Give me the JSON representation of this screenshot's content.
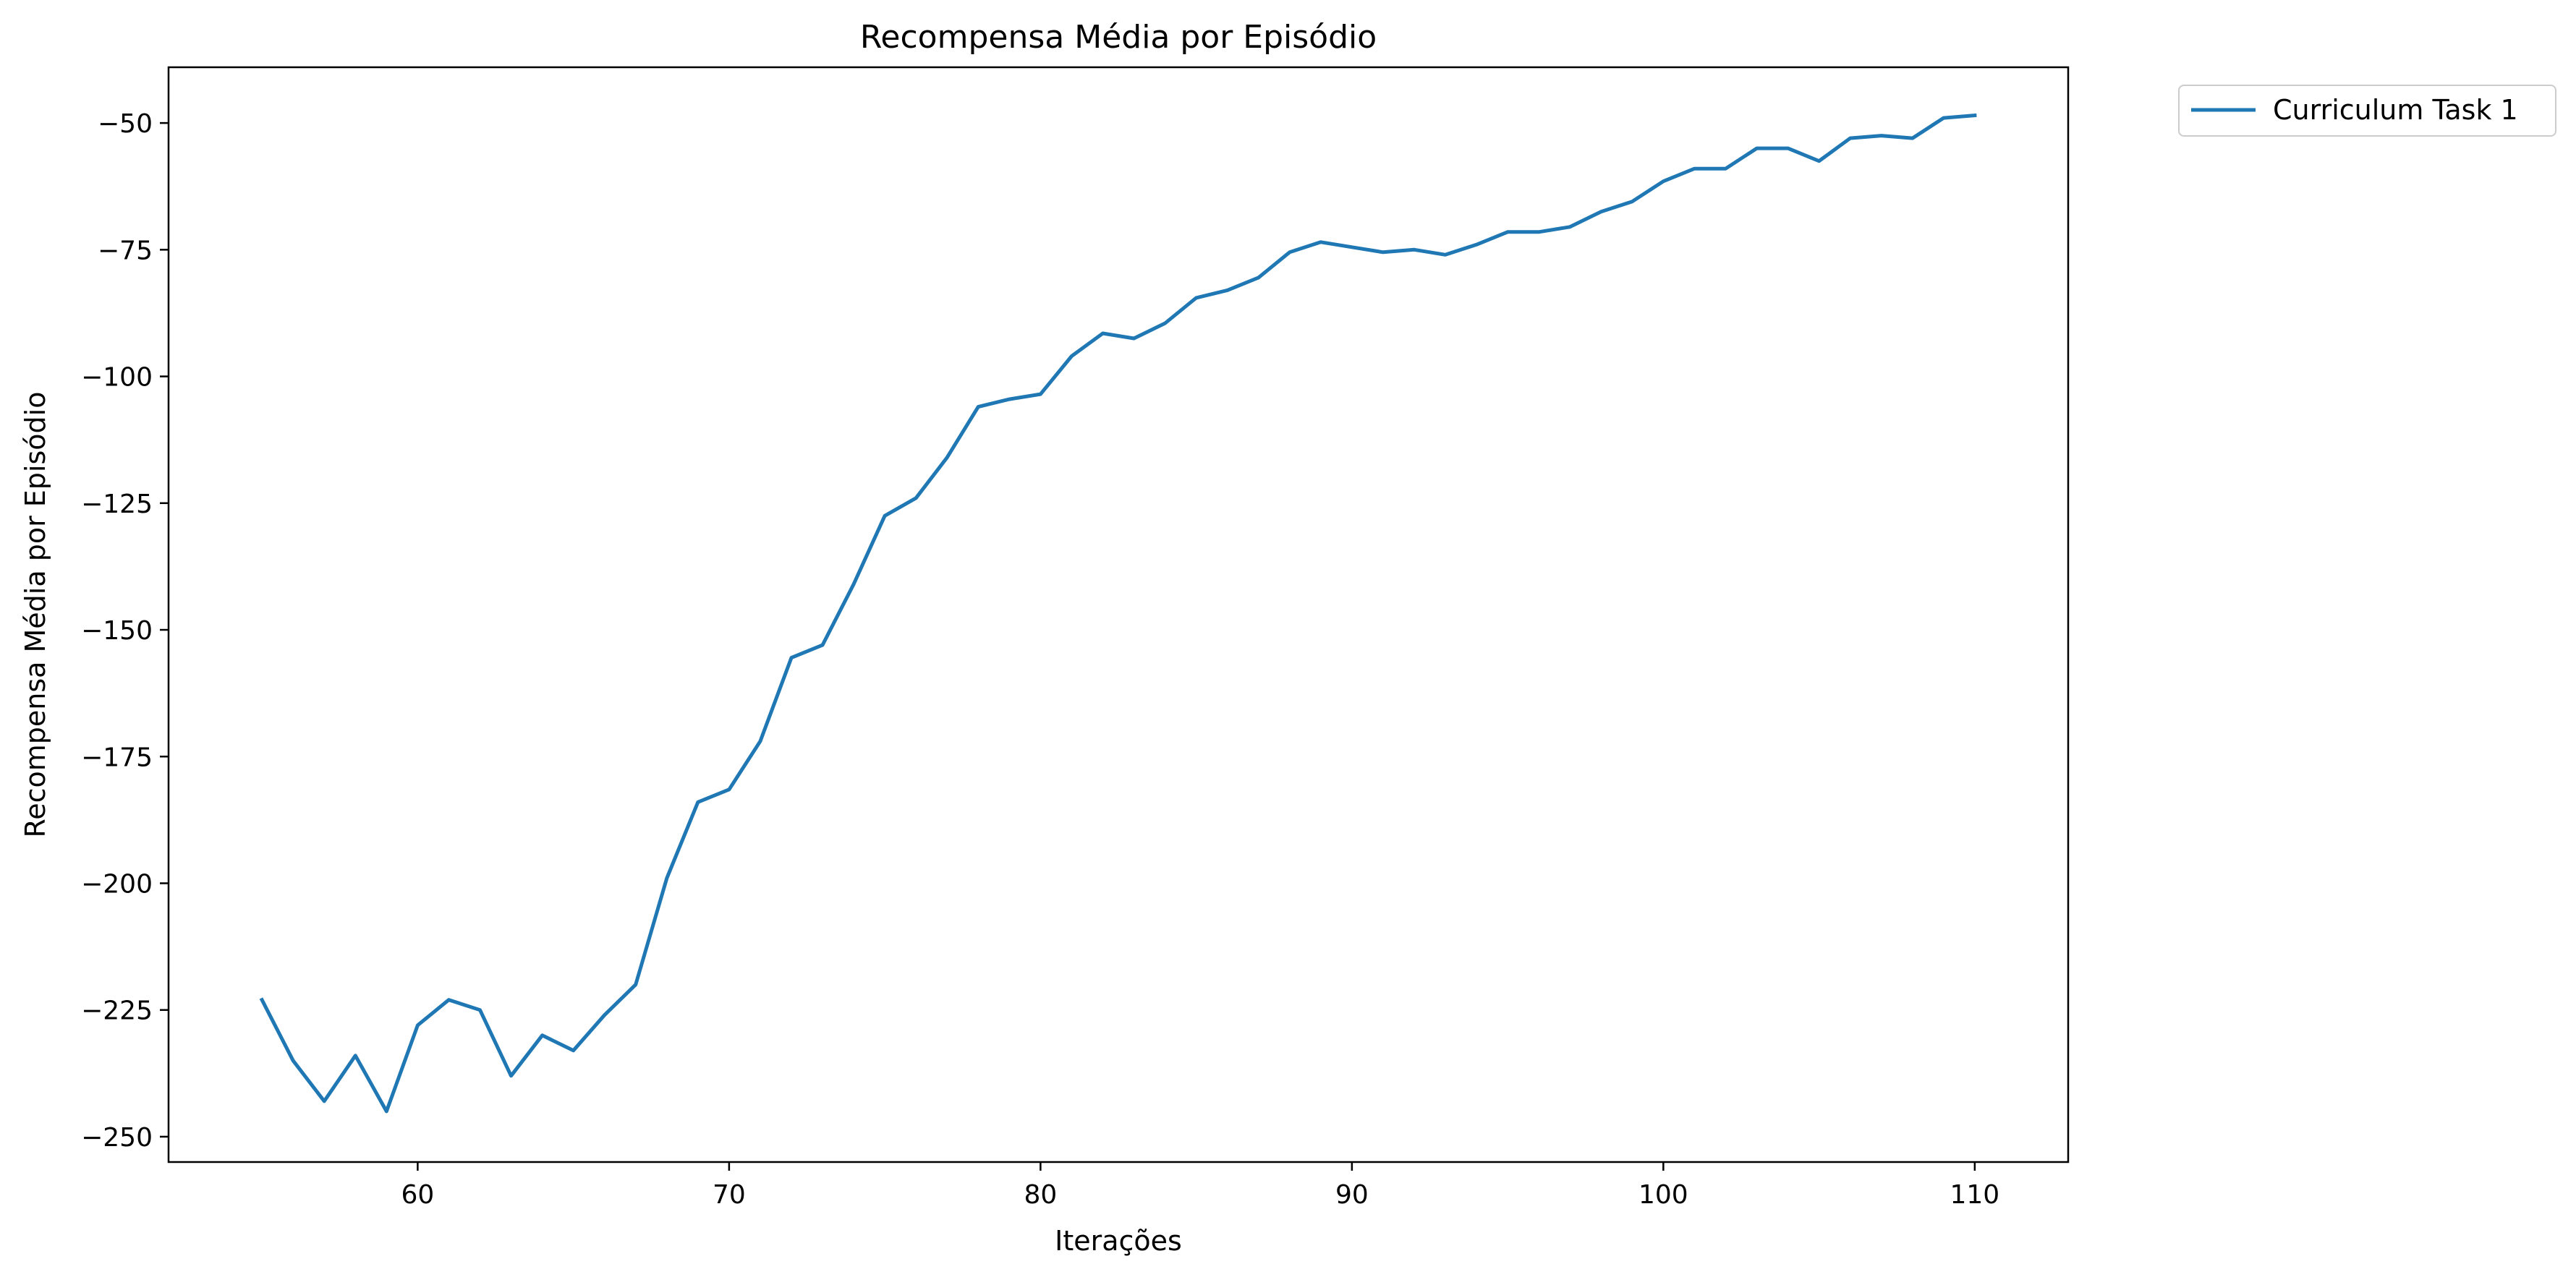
{
  "chart_data": {
    "type": "line",
    "title": "Recompensa Média por Episódio",
    "xlabel": "Iterações",
    "ylabel": "Recompensa Média por Episódio",
    "xlim": [
      52,
      113
    ],
    "ylim": [
      -255,
      -39
    ],
    "xticks": [
      60,
      70,
      80,
      90,
      100,
      110
    ],
    "yticks": [
      -50,
      -75,
      -100,
      -125,
      -150,
      -175,
      -200,
      -225,
      -250
    ],
    "grid": false,
    "legend_position": "outside-top-right",
    "series": [
      {
        "name": "Curriculum Task 1",
        "color": "#1f77b4",
        "x": [
          55,
          56,
          57,
          58,
          59,
          60,
          61,
          62,
          63,
          64,
          65,
          66,
          67,
          68,
          69,
          70,
          71,
          72,
          73,
          74,
          75,
          76,
          77,
          78,
          79,
          80,
          81,
          82,
          83,
          84,
          85,
          86,
          87,
          88,
          89,
          90,
          91,
          92,
          93,
          94,
          95,
          96,
          97,
          98,
          99,
          100,
          101,
          102,
          103,
          104,
          105,
          106,
          107,
          108,
          109,
          110
        ],
        "y": [
          -223,
          -235,
          -243,
          -234,
          -245,
          -228,
          -223,
          -225,
          -238,
          -230,
          -233,
          -226,
          -220,
          -199,
          -184,
          -181.5,
          -172,
          -155.5,
          -153,
          -141,
          -127.5,
          -124,
          -116,
          -106,
          -104.5,
          -103.5,
          -96,
          -91.5,
          -92.5,
          -89.5,
          -84.5,
          -83,
          -80.5,
          -75.5,
          -73.5,
          -74.5,
          -75.5,
          -75,
          -76,
          -74,
          -71.5,
          -71.5,
          -70.5,
          -67.5,
          -65.5,
          -61.5,
          -59,
          -59,
          -55,
          -55,
          -57.5,
          -53,
          -52.5,
          -53,
          -49,
          -48.5
        ]
      }
    ]
  }
}
